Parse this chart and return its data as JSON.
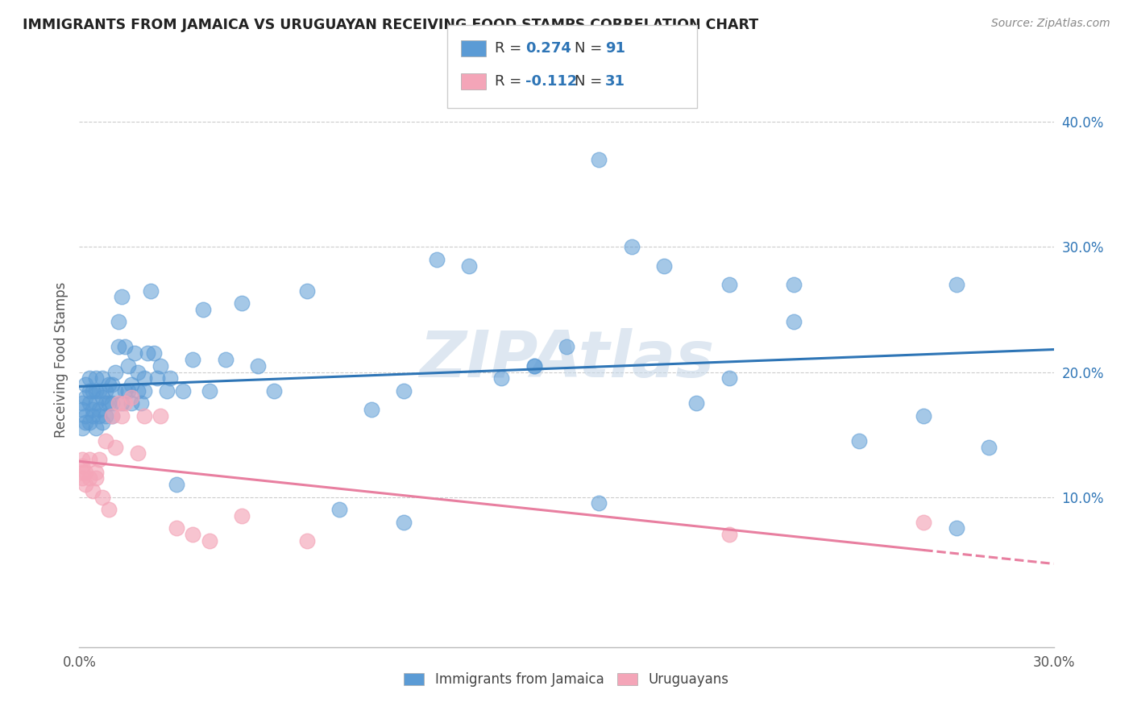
{
  "title": "IMMIGRANTS FROM JAMAICA VS URUGUAYAN RECEIVING FOOD STAMPS CORRELATION CHART",
  "source": "Source: ZipAtlas.com",
  "ylabel": "Receiving Food Stamps",
  "right_yticks": [
    "10.0%",
    "20.0%",
    "30.0%",
    "40.0%"
  ],
  "right_ytick_vals": [
    0.1,
    0.2,
    0.3,
    0.4
  ],
  "xlim": [
    0.0,
    0.3
  ],
  "ylim": [
    -0.02,
    0.44
  ],
  "jamaica_color": "#5b9bd5",
  "jamaica_line_color": "#2e75b6",
  "uruguay_color": "#f4a5b8",
  "uruguay_line_color": "#e87fa0",
  "jamaica_R": 0.274,
  "jamaica_N": 91,
  "uruguay_R": -0.112,
  "uruguay_N": 31,
  "jamaica_scatter_x": [
    0.001,
    0.001,
    0.001,
    0.002,
    0.002,
    0.002,
    0.002,
    0.003,
    0.003,
    0.003,
    0.003,
    0.004,
    0.004,
    0.004,
    0.005,
    0.005,
    0.005,
    0.005,
    0.006,
    0.006,
    0.006,
    0.007,
    0.007,
    0.007,
    0.008,
    0.008,
    0.008,
    0.009,
    0.009,
    0.01,
    0.01,
    0.01,
    0.011,
    0.011,
    0.012,
    0.012,
    0.013,
    0.013,
    0.014,
    0.014,
    0.015,
    0.015,
    0.016,
    0.016,
    0.017,
    0.018,
    0.018,
    0.019,
    0.02,
    0.02,
    0.021,
    0.022,
    0.023,
    0.024,
    0.025,
    0.027,
    0.028,
    0.03,
    0.032,
    0.035,
    0.038,
    0.04,
    0.045,
    0.05,
    0.055,
    0.06,
    0.07,
    0.08,
    0.09,
    0.1,
    0.11,
    0.12,
    0.13,
    0.14,
    0.15,
    0.16,
    0.17,
    0.18,
    0.19,
    0.2,
    0.22,
    0.24,
    0.26,
    0.27,
    0.28,
    0.27,
    0.16,
    0.2,
    0.22,
    0.14,
    0.1
  ],
  "jamaica_scatter_y": [
    0.17,
    0.175,
    0.155,
    0.18,
    0.165,
    0.19,
    0.16,
    0.175,
    0.16,
    0.185,
    0.195,
    0.165,
    0.17,
    0.185,
    0.175,
    0.185,
    0.155,
    0.195,
    0.17,
    0.165,
    0.185,
    0.18,
    0.16,
    0.195,
    0.165,
    0.185,
    0.175,
    0.19,
    0.175,
    0.165,
    0.19,
    0.175,
    0.2,
    0.185,
    0.22,
    0.24,
    0.26,
    0.175,
    0.22,
    0.185,
    0.205,
    0.185,
    0.175,
    0.19,
    0.215,
    0.185,
    0.2,
    0.175,
    0.195,
    0.185,
    0.215,
    0.265,
    0.215,
    0.195,
    0.205,
    0.185,
    0.195,
    0.11,
    0.185,
    0.21,
    0.25,
    0.185,
    0.21,
    0.255,
    0.205,
    0.185,
    0.265,
    0.09,
    0.17,
    0.185,
    0.29,
    0.285,
    0.195,
    0.205,
    0.22,
    0.095,
    0.3,
    0.285,
    0.175,
    0.195,
    0.24,
    0.145,
    0.165,
    0.27,
    0.14,
    0.075,
    0.37,
    0.27,
    0.27,
    0.205,
    0.08
  ],
  "uruguay_scatter_x": [
    0.001,
    0.001,
    0.001,
    0.001,
    0.002,
    0.002,
    0.003,
    0.003,
    0.004,
    0.005,
    0.005,
    0.006,
    0.007,
    0.008,
    0.009,
    0.01,
    0.011,
    0.012,
    0.013,
    0.014,
    0.016,
    0.018,
    0.02,
    0.025,
    0.03,
    0.035,
    0.04,
    0.05,
    0.07,
    0.2,
    0.26
  ],
  "uruguay_scatter_y": [
    0.13,
    0.125,
    0.115,
    0.12,
    0.12,
    0.11,
    0.115,
    0.13,
    0.105,
    0.12,
    0.115,
    0.13,
    0.1,
    0.145,
    0.09,
    0.165,
    0.14,
    0.175,
    0.165,
    0.175,
    0.18,
    0.135,
    0.165,
    0.165,
    0.075,
    0.07,
    0.065,
    0.085,
    0.065,
    0.07,
    0.08
  ],
  "legend_jamaica_label": "Immigrants from Jamaica",
  "legend_uruguay_label": "Uruguayans",
  "watermark": "ZIPAtlas",
  "bg_color": "#ffffff"
}
